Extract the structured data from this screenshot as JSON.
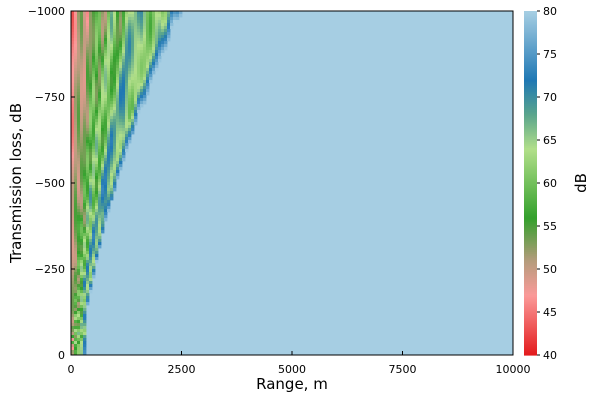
{
  "chart_data": {
    "type": "heatmap",
    "title": "",
    "xlabel": "Range, m",
    "ylabel": "Transmission loss, dB",
    "colorbar_label": "dB",
    "xlim": [
      0,
      10000
    ],
    "ylim": [
      0,
      -1000
    ],
    "clim": [
      40,
      80
    ],
    "x_ticks": [
      {
        "value": 0,
        "label": "0"
      },
      {
        "value": 2500,
        "label": "2500"
      },
      {
        "value": 5000,
        "label": "5000"
      },
      {
        "value": 7500,
        "label": "7500"
      },
      {
        "value": 10000,
        "label": "10000"
      }
    ],
    "y_ticks": [
      {
        "value": 0,
        "label": "0"
      },
      {
        "value": -250,
        "label": "−250"
      },
      {
        "value": -500,
        "label": "−500"
      },
      {
        "value": -750,
        "label": "−750"
      },
      {
        "value": -1000,
        "label": "−1000"
      }
    ],
    "colorbar_ticks": [
      {
        "value": 40,
        "label": "40"
      },
      {
        "value": 45,
        "label": "45"
      },
      {
        "value": 50,
        "label": "50"
      },
      {
        "value": 55,
        "label": "55"
      },
      {
        "value": 60,
        "label": "60"
      },
      {
        "value": 65,
        "label": "65"
      },
      {
        "value": 70,
        "label": "70"
      },
      {
        "value": 75,
        "label": "75"
      },
      {
        "value": 80,
        "label": "80"
      }
    ],
    "colormap": [
      {
        "value": 40,
        "color": "#e31a1c"
      },
      {
        "value": 47,
        "color": "#fb9a99"
      },
      {
        "value": 51,
        "color": "#b59c7c"
      },
      {
        "value": 56,
        "color": "#33a02c"
      },
      {
        "value": 64,
        "color": "#b2df8a"
      },
      {
        "value": 68,
        "color": "#5aa58c"
      },
      {
        "value": 72,
        "color": "#1f78b4"
      },
      {
        "value": 80,
        "color": "#a6cee3"
      }
    ],
    "field": {
      "background_value": 80,
      "boundary_range_at_surface": 330,
      "boundary_range_at_bottom": 2600,
      "boundary_exponent": 1.7,
      "beam_slopes": [
        0.22,
        0.36,
        0.52,
        0.68,
        0.86,
        1.06,
        1.3,
        1.55,
        1.85,
        2.2,
        2.6
      ],
      "beam_amplitude": 6
    }
  }
}
